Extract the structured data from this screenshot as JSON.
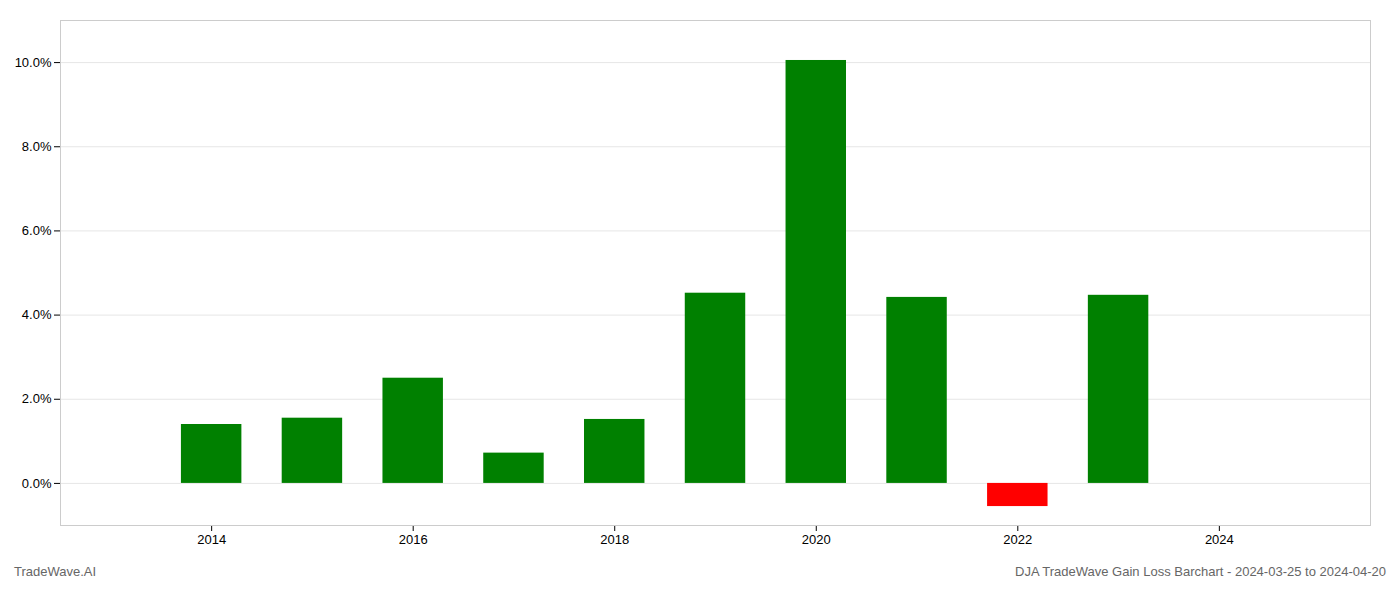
{
  "chart_data": {
    "type": "bar",
    "title": "DJA TradeWave Gain Loss Barchart - 2024-03-25 to 2024-04-20",
    "annotations": [
      "TradeWave.AI"
    ],
    "x": [
      2014,
      2015,
      2016,
      2017,
      2018,
      2019,
      2020,
      2021,
      2022,
      2023
    ],
    "values": [
      1.4,
      1.55,
      2.5,
      0.72,
      1.52,
      4.52,
      10.05,
      4.42,
      -0.55,
      4.47
    ],
    "colors": [
      "#008000",
      "#008000",
      "#008000",
      "#008000",
      "#008000",
      "#008000",
      "#008000",
      "#008000",
      "#ff0000",
      "#008000"
    ],
    "xlim": [
      2012.5,
      2025.5
    ],
    "xticks": [
      2014,
      2016,
      2018,
      2020,
      2022,
      2024
    ],
    "ylim": [
      -1.0,
      11.0
    ],
    "yticks": [
      {
        "value": 0,
        "label": "0.0%"
      },
      {
        "value": 2,
        "label": "2.0%"
      },
      {
        "value": 4,
        "label": "4.0%"
      },
      {
        "value": 6,
        "label": "6.0%"
      },
      {
        "value": 8,
        "label": "8.0%"
      },
      {
        "value": 10,
        "label": "10.0%"
      }
    ],
    "grid": true
  }
}
